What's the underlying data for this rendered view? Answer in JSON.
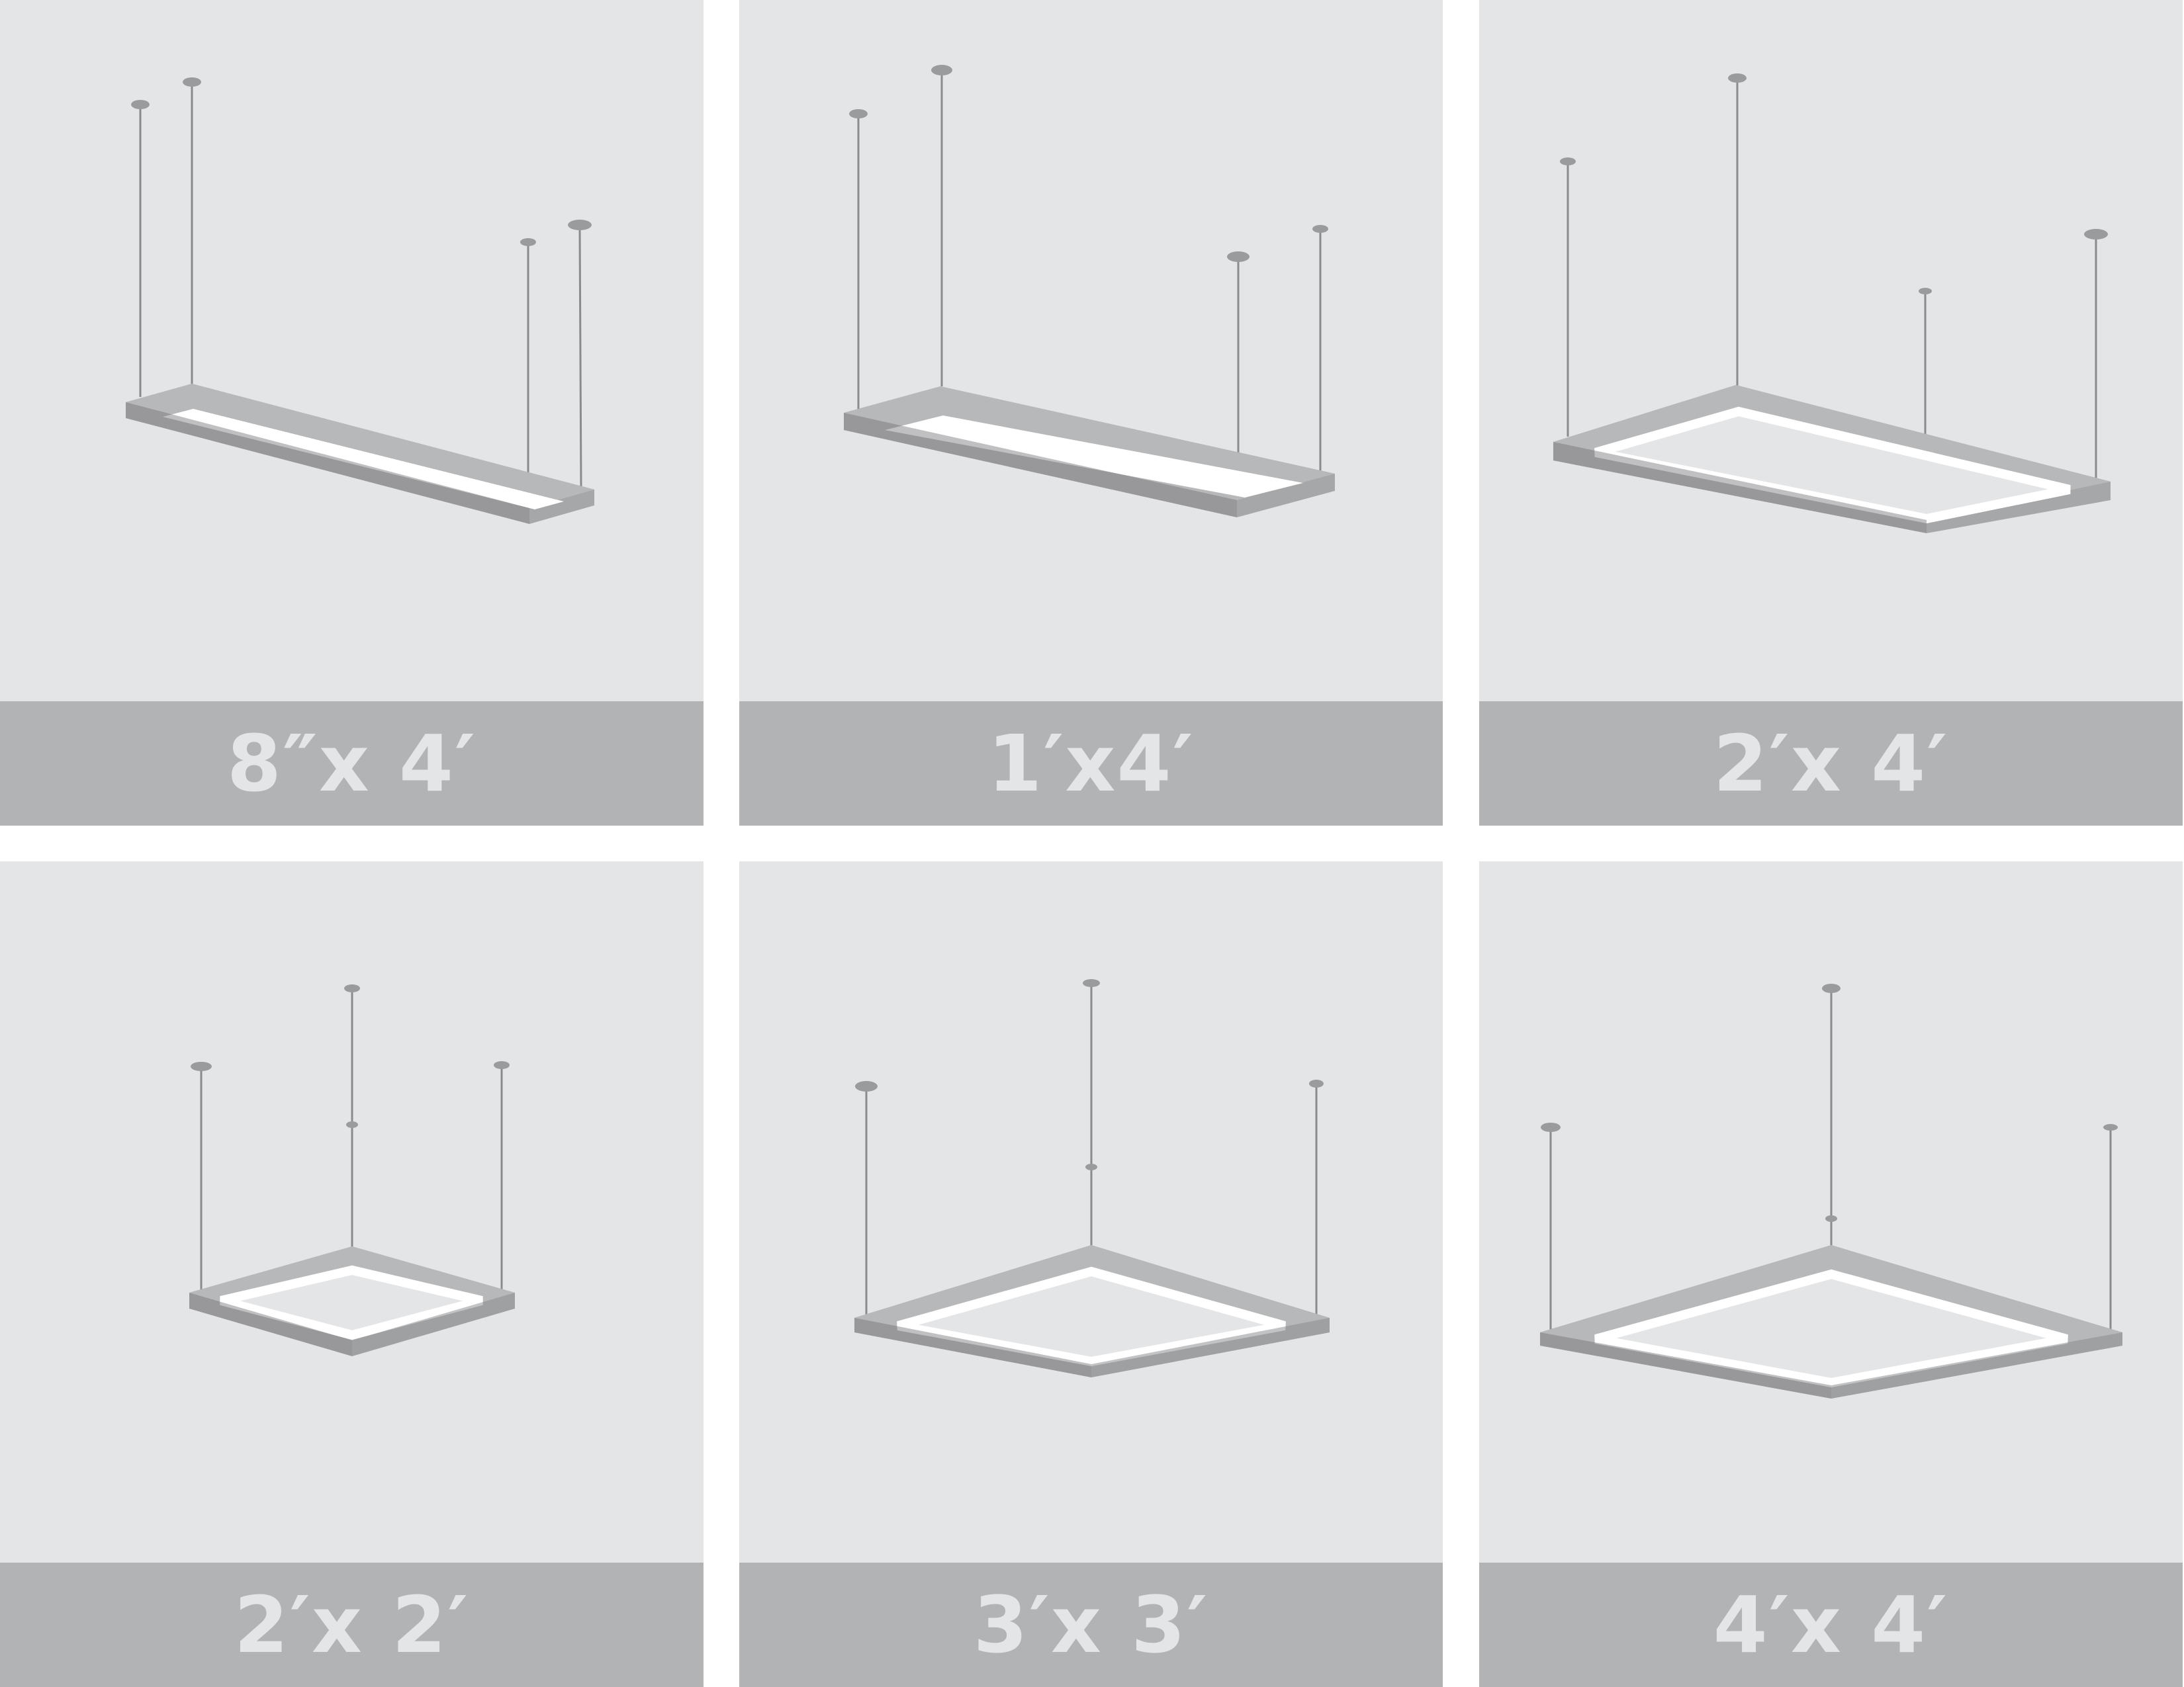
{
  "colors": {
    "page_background": "#ffffff",
    "card_background": "#e4e5e7",
    "label_bar": "#b2b3b5",
    "label_text": "#e4e5e7",
    "fixture_frame": "#a6a7a9",
    "fixture_shadow": "#8c8d90",
    "lens": "#ffffff",
    "cable": "#8a8b8d"
  },
  "fixtures": [
    {
      "label": "8″x 4′",
      "icon": "linear-pendant-fixture-icon"
    },
    {
      "label": "1′x4′",
      "icon": "linear-pendant-fixture-icon"
    },
    {
      "label": "2′x 4′",
      "icon": "rectangular-pendant-fixture-icon"
    },
    {
      "label": "2′x 2′",
      "icon": "square-pendant-fixture-icon"
    },
    {
      "label": "3′x 3′",
      "icon": "square-pendant-fixture-icon"
    },
    {
      "label": "4′x 4′",
      "icon": "square-pendant-fixture-icon"
    }
  ]
}
